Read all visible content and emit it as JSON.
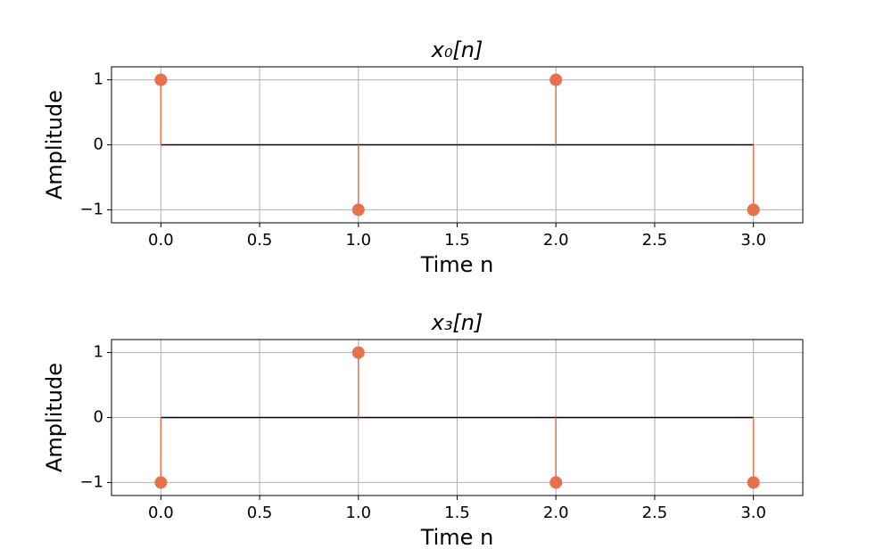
{
  "chart_data": [
    {
      "type": "stem",
      "title": "x₀[n]",
      "xlabel": "Time n",
      "ylabel": "Amplitude",
      "x": [
        0,
        1,
        2,
        3
      ],
      "series": [
        {
          "color": "#e8704a",
          "values": [
            1,
            -1,
            1,
            -1
          ]
        }
      ],
      "baseline_color": "#000000",
      "xlim": [
        -0.25,
        3.25
      ],
      "ylim": [
        -1.2,
        1.2
      ],
      "xticks": [
        {
          "value": 0,
          "label": "0.0"
        },
        0.5,
        {
          "value": 1,
          "label": "1.0"
        },
        1.5,
        {
          "value": 2,
          "label": "2.0"
        },
        2.5,
        {
          "value": 3,
          "label": "3.0"
        }
      ],
      "yticks": [
        {
          "value": -1,
          "label": "−1"
        },
        0,
        1
      ],
      "grid": true
    },
    {
      "type": "stem",
      "title": "x₃[n]",
      "xlabel": "Time n",
      "ylabel": "Amplitude",
      "x": [
        0,
        1,
        2,
        3
      ],
      "series": [
        {
          "color": "#e8704a",
          "values": [
            -1,
            1,
            -1,
            -1
          ]
        }
      ],
      "baseline_color": "#000000",
      "xlim": [
        -0.25,
        3.25
      ],
      "ylim": [
        -1.2,
        1.2
      ],
      "xticks": [
        {
          "value": 0,
          "label": "0.0"
        },
        0.5,
        {
          "value": 1,
          "label": "1.0"
        },
        1.5,
        {
          "value": 2,
          "label": "2.0"
        },
        2.5,
        {
          "value": 3,
          "label": "3.0"
        }
      ],
      "yticks": [
        {
          "value": -1,
          "label": "−1"
        },
        0,
        1
      ],
      "grid": true
    }
  ]
}
